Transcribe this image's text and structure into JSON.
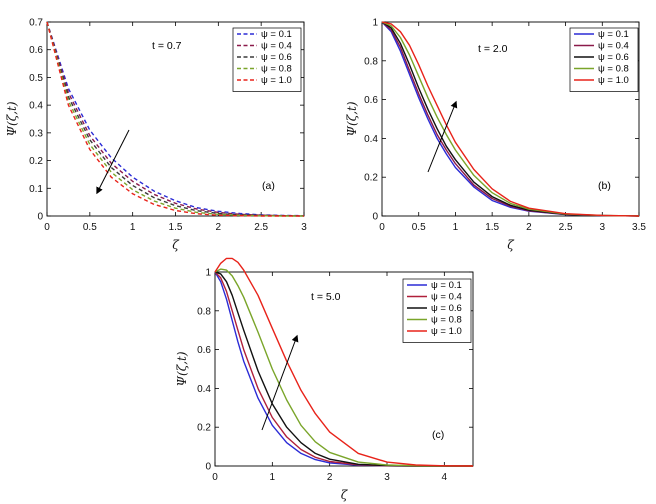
{
  "chart_data": [
    {
      "id": "a",
      "type": "line",
      "line_style": "dashed",
      "title": "",
      "xlabel": "ζ",
      "ylabel": "Ψ(ζ,t)",
      "annotation": "t = 0.7",
      "panel_label": "(a)",
      "xlim": [
        0,
        3
      ],
      "ylim": [
        0,
        0.7
      ],
      "xticks": [
        0,
        0.5,
        1,
        1.5,
        2,
        2.5,
        3
      ],
      "xtick_labels": [
        "0",
        "0.5",
        "1",
        "1.5",
        "2",
        "2.5",
        "3"
      ],
      "yticks": [
        0,
        0.1,
        0.2,
        0.3,
        0.4,
        0.5,
        0.6,
        0.7
      ],
      "ytick_labels": [
        "0",
        "0.1",
        "0.2",
        "0.3",
        "0.4",
        "0.5",
        "0.6",
        "0.7"
      ],
      "legend_position": "top-right",
      "arrow_direction": "down-left",
      "grid": false,
      "x": [
        0,
        0.25,
        0.5,
        0.75,
        1,
        1.25,
        1.5,
        1.75,
        2,
        2.25,
        2.5,
        2.75,
        3
      ],
      "series": [
        {
          "name": "ψ = 0.1",
          "color": "#2b2bd6",
          "values": [
            0.7,
            0.46,
            0.31,
            0.21,
            0.14,
            0.09,
            0.055,
            0.03,
            0.017,
            0.009,
            0.004,
            0.002,
            0.001
          ]
        },
        {
          "name": "ψ = 0.4",
          "color": "#8b1a4a",
          "values": [
            0.7,
            0.445,
            0.29,
            0.19,
            0.125,
            0.078,
            0.046,
            0.025,
            0.013,
            0.006,
            0.003,
            0.001,
            0.0
          ]
        },
        {
          "name": "ψ = 0.6",
          "color": "#3a3a3a",
          "values": [
            0.7,
            0.43,
            0.275,
            0.175,
            0.11,
            0.066,
            0.037,
            0.019,
            0.009,
            0.004,
            0.002,
            0.001,
            0.0
          ]
        },
        {
          "name": "ψ = 0.8",
          "color": "#7aa52a",
          "values": [
            0.7,
            0.415,
            0.258,
            0.158,
            0.095,
            0.054,
            0.028,
            0.013,
            0.006,
            0.002,
            0.001,
            0.0,
            0.0
          ]
        },
        {
          "name": "ψ = 1.0",
          "color": "#e8231a",
          "values": [
            0.7,
            0.4,
            0.24,
            0.14,
            0.08,
            0.042,
            0.02,
            0.008,
            0.003,
            0.001,
            0.0,
            0.0,
            0.0
          ]
        }
      ]
    },
    {
      "id": "b",
      "type": "line",
      "line_style": "solid",
      "title": "",
      "xlabel": "ζ",
      "ylabel": "Ψ(ζ,t)",
      "annotation": "t = 2.0",
      "panel_label": "(b)",
      "xlim": [
        0,
        3.5
      ],
      "ylim": [
        0,
        1
      ],
      "xticks": [
        0,
        0.5,
        1,
        1.5,
        2,
        2.5,
        3,
        3.5
      ],
      "xtick_labels": [
        "0",
        "0.5",
        "1",
        "1.5",
        "2",
        "2.5",
        "3",
        "3.5"
      ],
      "yticks": [
        0,
        0.2,
        0.4,
        0.6,
        0.8,
        1
      ],
      "ytick_labels": [
        "0",
        "0.2",
        "0.4",
        "0.6",
        "0.8",
        "1"
      ],
      "legend_position": "top-right",
      "arrow_direction": "up-right",
      "grid": false,
      "x": [
        0,
        0.125,
        0.25,
        0.375,
        0.5,
        0.625,
        0.75,
        0.875,
        1,
        1.25,
        1.5,
        1.75,
        2,
        2.5,
        3,
        3.5
      ],
      "series": [
        {
          "name": "ψ = 0.1",
          "color": "#2b2bd6",
          "values": [
            1.0,
            0.95,
            0.85,
            0.73,
            0.61,
            0.5,
            0.4,
            0.32,
            0.25,
            0.15,
            0.08,
            0.045,
            0.025,
            0.007,
            0.002,
            0.0
          ]
        },
        {
          "name": "ψ = 0.4",
          "color": "#8b1a4a",
          "values": [
            1.0,
            0.96,
            0.87,
            0.75,
            0.63,
            0.52,
            0.42,
            0.34,
            0.27,
            0.16,
            0.09,
            0.05,
            0.027,
            0.008,
            0.002,
            0.0
          ]
        },
        {
          "name": "ψ = 0.6",
          "color": "#111111",
          "values": [
            1.0,
            0.97,
            0.89,
            0.78,
            0.66,
            0.55,
            0.45,
            0.36,
            0.29,
            0.175,
            0.1,
            0.055,
            0.03,
            0.009,
            0.002,
            0.0
          ]
        },
        {
          "name": "ψ = 0.8",
          "color": "#7aa52a",
          "values": [
            1.0,
            0.98,
            0.92,
            0.83,
            0.72,
            0.61,
            0.51,
            0.42,
            0.34,
            0.21,
            0.12,
            0.065,
            0.035,
            0.01,
            0.003,
            0.0
          ]
        },
        {
          "name": "ψ = 1.0",
          "color": "#e8231a",
          "values": [
            1.0,
            0.99,
            0.95,
            0.88,
            0.78,
            0.67,
            0.57,
            0.47,
            0.38,
            0.24,
            0.14,
            0.075,
            0.04,
            0.012,
            0.003,
            0.0
          ]
        }
      ]
    },
    {
      "id": "c",
      "type": "line",
      "line_style": "solid",
      "title": "",
      "xlabel": "ζ",
      "ylabel": "Ψ(ζ,t)",
      "annotation": "t = 5.0",
      "panel_label": "(c)",
      "xlim": [
        0,
        4.5
      ],
      "ylim": [
        0,
        1.0
      ],
      "xticks": [
        0,
        1,
        2,
        3,
        4
      ],
      "xtick_labels": [
        "0",
        "1",
        "2",
        "3",
        "4"
      ],
      "yticks": [
        0,
        0.2,
        0.4,
        0.6,
        0.8,
        1
      ],
      "ytick_labels": [
        "0",
        "0.2",
        "0.4",
        "0.6",
        "0.8",
        "1"
      ],
      "legend_position": "top-right",
      "arrow_direction": "up-right",
      "grid": false,
      "x": [
        0,
        0.1,
        0.2,
        0.3,
        0.4,
        0.5,
        0.75,
        1,
        1.25,
        1.5,
        1.75,
        2,
        2.5,
        3,
        3.5,
        4,
        4.5
      ],
      "series": [
        {
          "name": "ψ = 0.1",
          "color": "#2b2bd6",
          "values": [
            1.0,
            0.95,
            0.86,
            0.75,
            0.64,
            0.54,
            0.35,
            0.21,
            0.12,
            0.065,
            0.033,
            0.016,
            0.004,
            0.001,
            0.0,
            0.0,
            0.0
          ]
        },
        {
          "name": "ψ = 0.4",
          "color": "#b0203a",
          "values": [
            1.0,
            0.97,
            0.9,
            0.8,
            0.7,
            0.6,
            0.4,
            0.25,
            0.15,
            0.085,
            0.045,
            0.023,
            0.006,
            0.001,
            0.0,
            0.0,
            0.0
          ]
        },
        {
          "name": "ψ = 0.6",
          "color": "#111111",
          "values": [
            1.0,
            0.99,
            0.95,
            0.88,
            0.79,
            0.7,
            0.49,
            0.32,
            0.2,
            0.12,
            0.065,
            0.035,
            0.009,
            0.002,
            0.0,
            0.0,
            0.0
          ]
        },
        {
          "name": "ψ = 0.8",
          "color": "#7aa52a",
          "values": [
            1.0,
            1.015,
            1.01,
            0.98,
            0.93,
            0.87,
            0.69,
            0.5,
            0.34,
            0.21,
            0.125,
            0.07,
            0.02,
            0.005,
            0.001,
            0.0,
            0.0
          ]
        },
        {
          "name": "ψ = 1.0",
          "color": "#e8231a",
          "values": [
            1.0,
            1.045,
            1.07,
            1.07,
            1.05,
            1.01,
            0.88,
            0.71,
            0.54,
            0.39,
            0.27,
            0.175,
            0.065,
            0.02,
            0.005,
            0.001,
            0.0
          ]
        }
      ]
    }
  ]
}
